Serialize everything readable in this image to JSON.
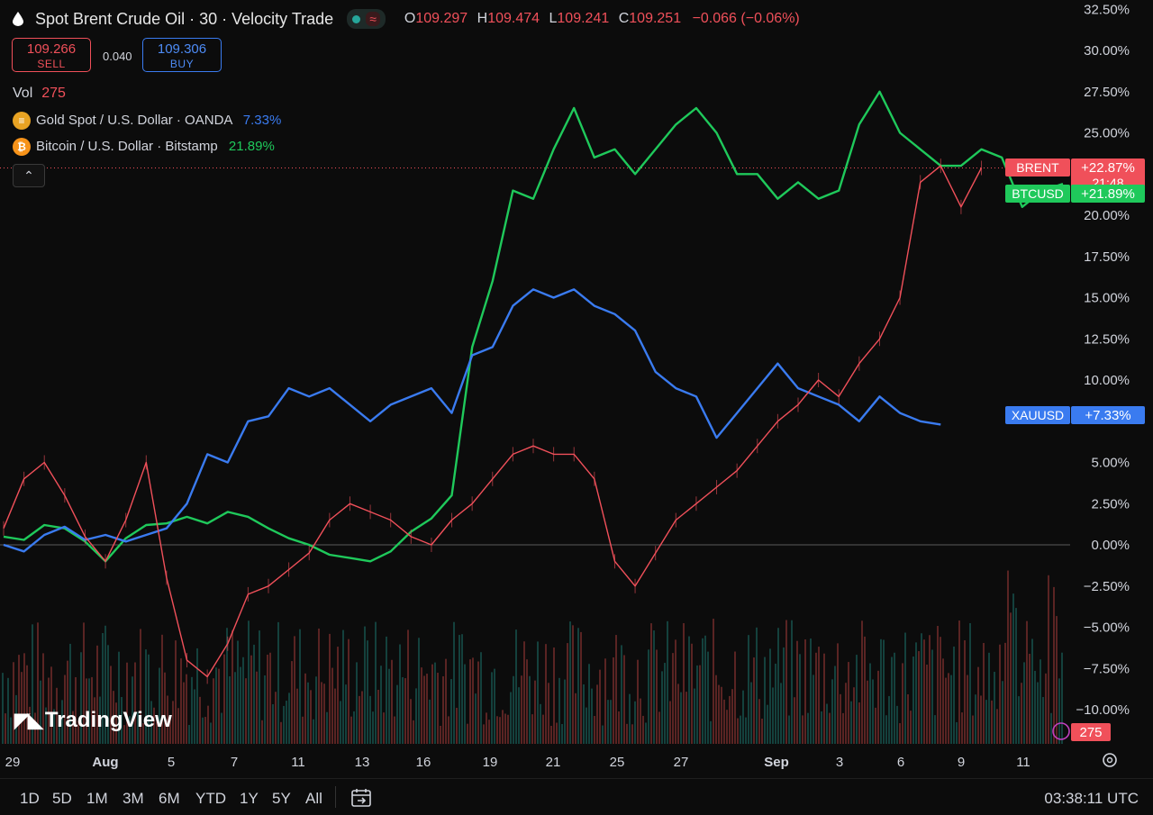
{
  "header": {
    "title": "Spot Brent Crude Oil · 30 · Velocity Trade",
    "ohlc": [
      {
        "key": "O",
        "value": "109.297"
      },
      {
        "key": "H",
        "value": "109.474"
      },
      {
        "key": "L",
        "value": "109.241"
      },
      {
        "key": "C",
        "value": "109.251"
      }
    ],
    "change": "−0.066 (−0.06%)"
  },
  "trade": {
    "sell_price": "109.266",
    "sell_label": "SELL",
    "buy_price": "109.306",
    "buy_label": "BUY",
    "spread": "0.040"
  },
  "volume": {
    "label": "Vol",
    "value": "275"
  },
  "compare": [
    {
      "name": "Gold Spot / U.S. Dollar · OANDA",
      "value": "7.33%",
      "color": "#3a7bf0",
      "icon": "gold-icon"
    },
    {
      "name": "Bitcoin / U.S. Dollar · Bitstamp",
      "value": "21.89%",
      "color": "#1fc95b",
      "icon": "bitcoin-icon"
    }
  ],
  "branding": {
    "logo": "TradingView"
  },
  "bottom": {
    "ranges": [
      "1D",
      "5D",
      "1M",
      "3M",
      "6M",
      "YTD",
      "1Y",
      "5Y",
      "All"
    ],
    "time": "03:38:11 UTC"
  },
  "chart_data": {
    "type": "line",
    "scale": "percent",
    "ylim": [
      -11.5,
      33
    ],
    "y_ticks": [
      32.5,
      30,
      27.5,
      25,
      20,
      17.5,
      15,
      12.5,
      10,
      5,
      2.5,
      0,
      -2.5,
      -5,
      -7.5,
      -10
    ],
    "y_tick_labels": [
      "32.50%",
      "30.00%",
      "27.50%",
      "25.00%",
      "20.00%",
      "17.50%",
      "15.00%",
      "12.50%",
      "10.00%",
      "5.00%",
      "2.50%",
      "0.00%",
      "−2.50%",
      "−5.00%",
      "−7.50%",
      "−10.00%"
    ],
    "x_ticks": [
      "29",
      "Aug",
      "5",
      "7",
      "11",
      "13",
      "16",
      "19",
      "21",
      "25",
      "27",
      "Sep",
      "3",
      "6",
      "9",
      "11"
    ],
    "x_tick_bold": [
      "Aug",
      "Sep"
    ],
    "series": [
      {
        "name": "BTCUSD",
        "label": "BTCUSD",
        "last": "+21.89%",
        "color": "#1fc95b",
        "points": [
          [
            0,
            0.5
          ],
          [
            1,
            0.3
          ],
          [
            2,
            1.2
          ],
          [
            3,
            1.0
          ],
          [
            4,
            0.2
          ],
          [
            5,
            -1.0
          ],
          [
            6,
            0.4
          ],
          [
            7,
            1.2
          ],
          [
            8,
            1.3
          ],
          [
            9,
            1.7
          ],
          [
            10,
            1.3
          ],
          [
            11,
            2.0
          ],
          [
            12,
            1.7
          ],
          [
            13,
            1.0
          ],
          [
            14,
            0.4
          ],
          [
            15,
            0.0
          ],
          [
            16,
            -0.6
          ],
          [
            17,
            -0.8
          ],
          [
            18,
            -1.0
          ],
          [
            19,
            -0.4
          ],
          [
            20,
            0.8
          ],
          [
            21,
            1.6
          ],
          [
            22,
            3.0
          ],
          [
            23,
            12.0
          ],
          [
            24,
            16.0
          ],
          [
            25,
            21.5
          ],
          [
            26,
            21.0
          ],
          [
            27,
            24.0
          ],
          [
            28,
            26.5
          ],
          [
            29,
            23.5
          ],
          [
            30,
            24.0
          ],
          [
            31,
            22.5
          ],
          [
            32,
            24.0
          ],
          [
            33,
            25.5
          ],
          [
            34,
            26.5
          ],
          [
            35,
            25.0
          ],
          [
            36,
            22.5
          ],
          [
            37,
            22.5
          ],
          [
            38,
            21.0
          ],
          [
            39,
            22.0
          ],
          [
            40,
            21.0
          ],
          [
            41,
            21.5
          ],
          [
            42,
            25.5
          ],
          [
            43,
            27.5
          ],
          [
            44,
            25.0
          ],
          [
            45,
            24.0
          ],
          [
            46,
            23.0
          ],
          [
            47,
            23.0
          ],
          [
            48,
            24.0
          ],
          [
            49,
            23.5
          ],
          [
            50,
            20.5
          ],
          [
            51,
            21.5
          ],
          [
            52,
            21.9
          ]
        ]
      },
      {
        "name": "XAUUSD",
        "label": "XAUUSD",
        "last": "+7.33%",
        "color": "#3a7bf0",
        "points": [
          [
            0,
            0.0
          ],
          [
            1,
            -0.4
          ],
          [
            2,
            0.6
          ],
          [
            3,
            1.1
          ],
          [
            4,
            0.3
          ],
          [
            5,
            0.6
          ],
          [
            6,
            0.2
          ],
          [
            7,
            0.6
          ],
          [
            8,
            1.0
          ],
          [
            9,
            2.5
          ],
          [
            10,
            5.5
          ],
          [
            11,
            5.0
          ],
          [
            12,
            7.5
          ],
          [
            13,
            7.8
          ],
          [
            14,
            9.5
          ],
          [
            15,
            9.0
          ],
          [
            16,
            9.5
          ],
          [
            17,
            8.5
          ],
          [
            18,
            7.5
          ],
          [
            19,
            8.5
          ],
          [
            20,
            9.0
          ],
          [
            21,
            9.5
          ],
          [
            22,
            8.0
          ],
          [
            23,
            11.5
          ],
          [
            24,
            12.0
          ],
          [
            25,
            14.5
          ],
          [
            26,
            15.5
          ],
          [
            27,
            15.0
          ],
          [
            28,
            15.5
          ],
          [
            29,
            14.5
          ],
          [
            30,
            14.0
          ],
          [
            31,
            13.0
          ],
          [
            32,
            10.5
          ],
          [
            33,
            9.5
          ],
          [
            34,
            9.0
          ],
          [
            35,
            6.5
          ],
          [
            36,
            8.0
          ],
          [
            37,
            9.5
          ],
          [
            38,
            11.0
          ],
          [
            39,
            9.5
          ],
          [
            40,
            9.0
          ],
          [
            41,
            8.5
          ],
          [
            42,
            7.5
          ],
          [
            43,
            9.0
          ],
          [
            44,
            8.0
          ],
          [
            45,
            7.5
          ],
          [
            46,
            7.3
          ]
        ]
      },
      {
        "name": "BRENT",
        "label": "BRENT",
        "last": "+22.87%",
        "countdown": "21:48",
        "color": "#f0505a",
        "points": [
          [
            0,
            1.0
          ],
          [
            1,
            4.0
          ],
          [
            2,
            5.0
          ],
          [
            3,
            3.0
          ],
          [
            4,
            0.5
          ],
          [
            5,
            -1.0
          ],
          [
            6,
            1.5
          ],
          [
            7,
            5.0
          ],
          [
            8,
            -2.0
          ],
          [
            9,
            -7.0
          ],
          [
            10,
            -8.0
          ],
          [
            11,
            -6.0
          ],
          [
            12,
            -3.0
          ],
          [
            13,
            -2.5
          ],
          [
            14,
            -1.5
          ],
          [
            15,
            -0.5
          ],
          [
            16,
            1.5
          ],
          [
            17,
            2.5
          ],
          [
            18,
            2.0
          ],
          [
            19,
            1.5
          ],
          [
            20,
            0.5
          ],
          [
            21,
            0.0
          ],
          [
            22,
            1.5
          ],
          [
            23,
            2.5
          ],
          [
            24,
            4.0
          ],
          [
            25,
            5.5
          ],
          [
            26,
            6.0
          ],
          [
            27,
            5.5
          ],
          [
            28,
            5.5
          ],
          [
            29,
            4.0
          ],
          [
            30,
            -1.0
          ],
          [
            31,
            -2.5
          ],
          [
            32,
            -0.5
          ],
          [
            33,
            1.5
          ],
          [
            34,
            2.5
          ],
          [
            35,
            3.5
          ],
          [
            36,
            4.5
          ],
          [
            37,
            6.0
          ],
          [
            38,
            7.5
          ],
          [
            39,
            8.5
          ],
          [
            40,
            10.0
          ],
          [
            41,
            9.0
          ],
          [
            42,
            11.0
          ],
          [
            43,
            12.5
          ],
          [
            44,
            15.0
          ],
          [
            45,
            22.0
          ],
          [
            46,
            23.0
          ],
          [
            47,
            20.5
          ],
          [
            48,
            22.87
          ]
        ]
      }
    ]
  }
}
